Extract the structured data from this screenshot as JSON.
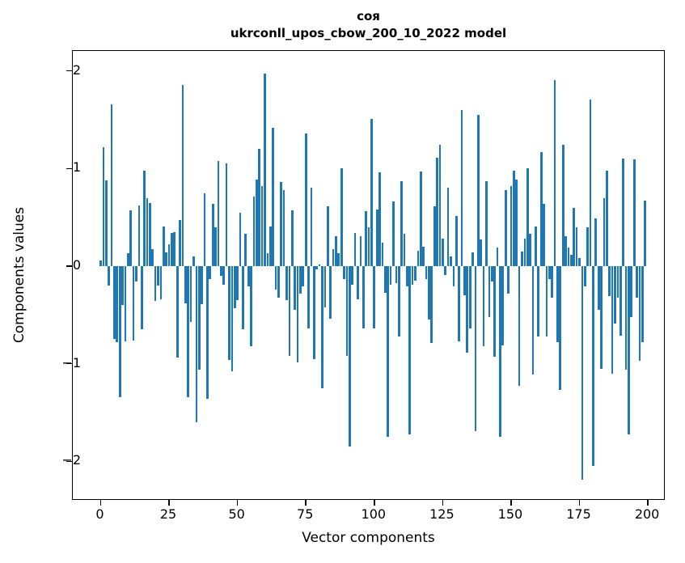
{
  "chart_data": {
    "type": "bar",
    "title": "соя",
    "subtitle": "ukrconll_upos_cbow_200_10_2022 model",
    "xlabel": "Vector components",
    "ylabel": "Components values",
    "x_ticks": [
      0,
      25,
      50,
      75,
      100,
      125,
      150,
      175,
      200
    ],
    "y_ticks": [
      2,
      1,
      0,
      -1,
      -2
    ],
    "xlim": [
      -10,
      210
    ],
    "ylim": [
      -2.4,
      2.21
    ],
    "grid": false,
    "legend": null,
    "bar_color": "#1f77b4",
    "n_components": 200,
    "values": [
      0.06,
      1.22,
      0.88,
      -0.2,
      1.66,
      -0.75,
      -0.78,
      -1.34,
      -0.4,
      -0.77,
      0.13,
      0.57,
      -0.76,
      -0.16,
      0.62,
      -0.65,
      0.98,
      0.7,
      0.65,
      0.17,
      -0.36,
      -0.2,
      -0.34,
      0.41,
      0.14,
      0.22,
      0.34,
      0.35,
      -0.94,
      0.47,
      1.86,
      -0.38,
      -1.34,
      -0.57,
      0.1,
      -1.6,
      -1.06,
      -0.39,
      0.75,
      -1.36,
      -0.13,
      0.64,
      0.4,
      1.08,
      -0.1,
      -0.19,
      1.05,
      -0.96,
      -1.08,
      -0.43,
      -0.35,
      0.55,
      -0.65,
      0.33,
      -0.21,
      -0.82,
      0.71,
      0.89,
      1.2,
      0.82,
      1.97,
      0.13,
      0.41,
      1.42,
      -0.24,
      -0.32,
      0.86,
      0.78,
      -0.35,
      -0.92,
      0.57,
      -0.45,
      -0.99,
      -0.28,
      -0.21,
      1.36,
      -0.64,
      0.8,
      -0.95,
      -0.03,
      0.02,
      -1.25,
      -0.42,
      0.61,
      -0.54,
      0.17,
      0.31,
      0.13,
      1.0,
      -0.13,
      -0.92,
      -1.85,
      -0.19,
      0.34,
      -0.34,
      0.31,
      -0.64,
      0.56,
      0.4,
      1.51,
      -0.64,
      0.58,
      0.96,
      0.24,
      -0.27,
      -1.75,
      -0.19,
      0.66,
      -0.17,
      -0.72,
      0.87,
      0.33,
      -0.21,
      -1.72,
      -0.19,
      -0.15,
      0.16,
      0.97,
      0.2,
      -0.13,
      -0.55,
      -0.79,
      0.61,
      1.11,
      1.24,
      0.28,
      -0.09,
      0.8,
      0.1,
      -0.21,
      0.51,
      -0.77,
      1.6,
      -0.3,
      -0.89,
      -0.64,
      0.14,
      -1.69,
      1.55,
      0.27,
      -0.82,
      0.87,
      -0.52,
      -0.16,
      -0.93,
      0.19,
      -1.75,
      -0.81,
      0.78,
      -0.28,
      0.82,
      0.98,
      0.89,
      -1.23,
      0.15,
      0.28,
      1.0,
      0.33,
      -1.11,
      0.41,
      -0.72,
      1.17,
      0.64,
      -0.72,
      -0.13,
      -0.32,
      1.91,
      -0.78,
      -1.27,
      1.24,
      0.31,
      0.19,
      0.12,
      0.6,
      0.4,
      0.08,
      -2.19,
      -0.21,
      0.4,
      1.71,
      -2.05,
      0.49,
      -0.45,
      -1.05,
      0.7,
      0.98,
      -0.31,
      -1.1,
      -0.59,
      -0.32,
      -0.71,
      1.1,
      -1.06,
      -1.72,
      -0.52,
      1.09,
      -0.32,
      -0.97,
      -0.78,
      0.67
    ]
  }
}
